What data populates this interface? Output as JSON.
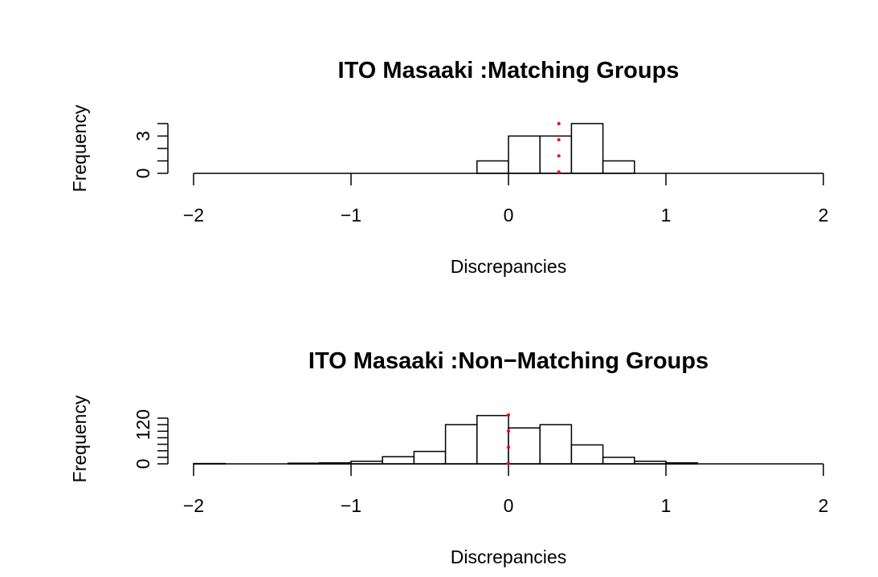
{
  "chart_data": [
    {
      "type": "histogram",
      "title": "ITO Masaaki :Matching Groups",
      "xlabel": "Discrepancies",
      "ylabel": "Frequency",
      "xlim": [
        -2,
        2
      ],
      "ylim": [
        0,
        4
      ],
      "x_ticks": [
        -2,
        -1,
        0,
        1,
        2
      ],
      "x_tick_labels": [
        "−2",
        "−1",
        "0",
        "1",
        "2"
      ],
      "y_ticks": [
        0,
        3
      ],
      "y_tick_labels": [
        "0",
        "3"
      ],
      "y_minor_ticks": [
        0,
        1,
        2,
        3,
        4
      ],
      "bin_width": 0.2,
      "bins": [
        {
          "start": -0.2,
          "count": 1
        },
        {
          "start": 0.0,
          "count": 3
        },
        {
          "start": 0.2,
          "count": 3
        },
        {
          "start": 0.4,
          "count": 4
        },
        {
          "start": 0.6,
          "count": 1
        }
      ],
      "reference_line": {
        "x": 0.32,
        "color": "#ff0000",
        "style": "dotted"
      }
    },
    {
      "type": "histogram",
      "title": "ITO Masaaki :Non−Matching Groups",
      "xlabel": "Discrepancies",
      "ylabel": "Frequency",
      "xlim": [
        -2,
        2
      ],
      "ylim": [
        0,
        150
      ],
      "x_ticks": [
        -2,
        -1,
        0,
        1,
        2
      ],
      "x_tick_labels": [
        "−2",
        "−1",
        "0",
        "1",
        "2"
      ],
      "y_ticks": [
        0,
        120
      ],
      "y_tick_labels": [
        "0",
        "120"
      ],
      "y_minor_ticks": [
        0,
        20,
        40,
        60,
        80,
        100,
        120,
        140
      ],
      "bin_width": 0.2,
      "bins": [
        {
          "start": -2.0,
          "count": 1
        },
        {
          "start": -1.8,
          "count": 0
        },
        {
          "start": -1.6,
          "count": 0
        },
        {
          "start": -1.4,
          "count": 2
        },
        {
          "start": -1.2,
          "count": 3
        },
        {
          "start": -1.0,
          "count": 8
        },
        {
          "start": -0.8,
          "count": 22
        },
        {
          "start": -0.6,
          "count": 38
        },
        {
          "start": -0.4,
          "count": 120
        },
        {
          "start": -0.2,
          "count": 148
        },
        {
          "start": 0.0,
          "count": 110
        },
        {
          "start": 0.2,
          "count": 120
        },
        {
          "start": 0.4,
          "count": 58
        },
        {
          "start": 0.6,
          "count": 20
        },
        {
          "start": 0.8,
          "count": 8
        },
        {
          "start": 1.0,
          "count": 3
        }
      ],
      "reference_line": {
        "x": 0.0,
        "color": "#ff0000",
        "style": "dotted"
      }
    }
  ]
}
